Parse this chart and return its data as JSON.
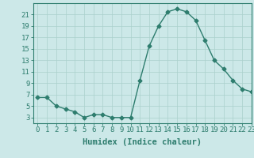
{
  "x": [
    0,
    1,
    2,
    3,
    4,
    5,
    6,
    7,
    8,
    9,
    10,
    11,
    12,
    13,
    14,
    15,
    16,
    17,
    18,
    19,
    20,
    21,
    22,
    23
  ],
  "y": [
    6.5,
    6.5,
    5.0,
    4.5,
    4.0,
    3.0,
    3.5,
    3.5,
    3.0,
    3.0,
    3.0,
    9.5,
    15.5,
    19.0,
    21.5,
    22.0,
    21.5,
    20.0,
    16.5,
    13.0,
    11.5,
    9.5,
    8.0,
    7.5
  ],
  "xlabel": "Humidex (Indice chaleur)",
  "ylim": [
    2,
    23
  ],
  "xlim": [
    -0.5,
    23
  ],
  "yticks": [
    3,
    5,
    7,
    9,
    11,
    13,
    15,
    17,
    19,
    21
  ],
  "xticks": [
    0,
    1,
    2,
    3,
    4,
    5,
    6,
    7,
    8,
    9,
    10,
    11,
    12,
    13,
    14,
    15,
    16,
    17,
    18,
    19,
    20,
    21,
    22,
    23
  ],
  "line_color": "#2e7d6e",
  "marker": "D",
  "marker_size": 2.5,
  "bg_color": "#cce8e8",
  "grid_color": "#aad0cc",
  "axis_color": "#2e7d6e",
  "tick_label_color": "#2e7d6e",
  "xlabel_color": "#2e7d6e",
  "xlabel_fontsize": 7.5,
  "tick_fontsize": 6.5
}
